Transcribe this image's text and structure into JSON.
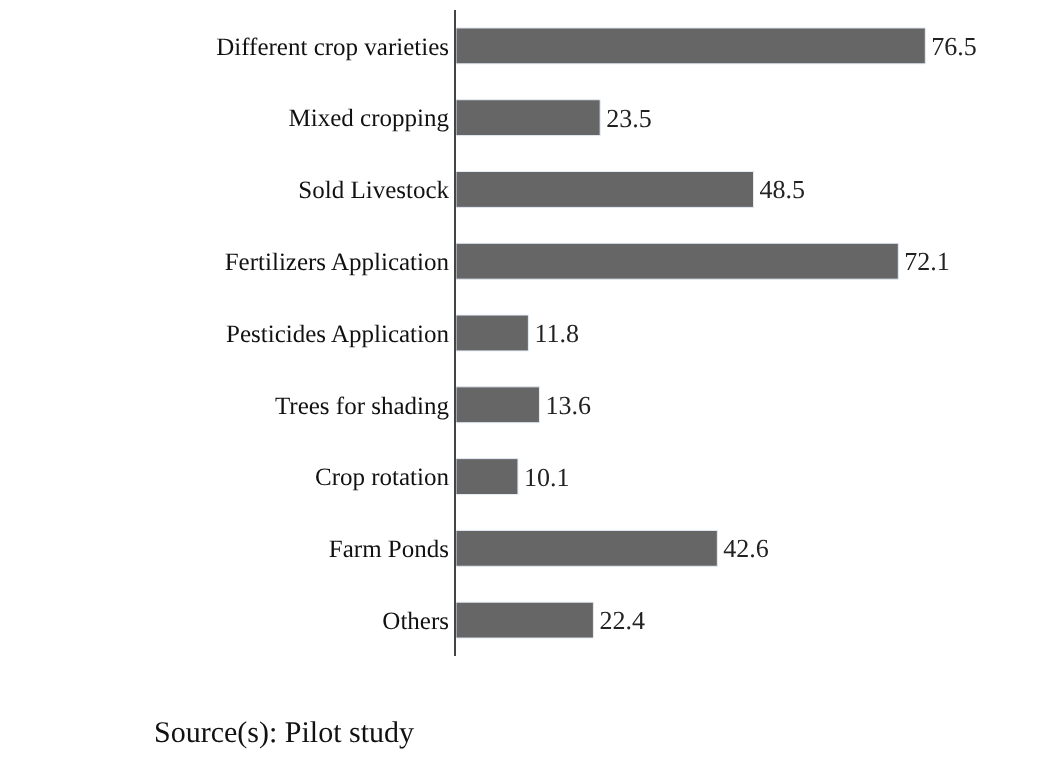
{
  "chart_data": {
    "type": "bar",
    "orientation": "horizontal",
    "categories": [
      "Different crop varieties",
      "Mixed cropping",
      "Sold Livestock",
      "Fertilizers Application",
      "Pesticides Application",
      "Trees for shading",
      "Crop rotation",
      "Farm Ponds",
      "Others"
    ],
    "values": [
      76.5,
      23.5,
      48.5,
      72.1,
      11.8,
      13.6,
      10.1,
      42.6,
      22.4
    ],
    "color": "#666666",
    "data_labels": true,
    "annotations": [
      "Source(s): Pilot study"
    ]
  }
}
